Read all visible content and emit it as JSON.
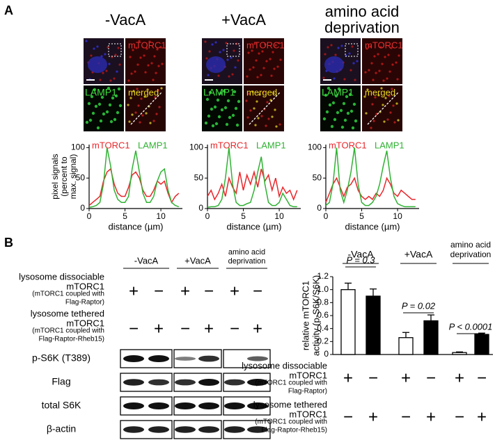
{
  "panel_a": {
    "label": "A",
    "conditions": [
      [
        "-VacA"
      ],
      [
        "+VacA"
      ],
      [
        "amino acid",
        "deprivation"
      ]
    ],
    "tile_labels": [
      "mTORC1",
      "LAMP1",
      "merged"
    ]
  },
  "chart_data": [
    {
      "type": "line",
      "x": [
        0,
        0.5,
        1,
        1.5,
        2,
        2.5,
        3,
        3.5,
        4,
        4.5,
        5,
        5.5,
        6,
        6.5,
        7,
        7.5,
        8,
        8.5,
        9,
        9.5,
        10,
        10.5,
        11,
        11.5,
        12,
        12.5
      ],
      "series": [
        {
          "name": "mTORC1",
          "color": "#e8262b",
          "values": [
            5,
            10,
            15,
            20,
            45,
            60,
            65,
            40,
            25,
            20,
            20,
            35,
            55,
            60,
            50,
            30,
            20,
            20,
            30,
            45,
            40,
            45,
            25,
            10,
            20,
            25
          ]
        },
        {
          "name": "LAMP1",
          "color": "#2fb232",
          "values": [
            2,
            3,
            5,
            10,
            40,
            100,
            70,
            30,
            15,
            10,
            10,
            20,
            65,
            95,
            60,
            25,
            10,
            10,
            20,
            45,
            60,
            65,
            30,
            10,
            5,
            3
          ]
        }
      ],
      "xlim": [
        0,
        13
      ],
      "ylim": [
        0,
        105
      ],
      "xticks": [
        0,
        5,
        10
      ],
      "yticks": [
        0,
        50,
        100
      ],
      "xlabel": "distance (µm)",
      "ylabel": [
        "pixel signals",
        "(percent to",
        "max. signal)"
      ]
    },
    {
      "type": "line",
      "x": [
        0,
        0.5,
        1,
        1.5,
        2,
        2.5,
        3,
        3.5,
        4,
        4.5,
        5,
        5.5,
        6,
        6.5,
        7,
        7.5,
        8,
        8.5,
        9,
        9.5,
        10,
        10.5,
        11,
        11.5,
        12,
        12.5
      ],
      "series": [
        {
          "name": "mTORC1",
          "color": "#e8262b",
          "values": [
            20,
            30,
            15,
            25,
            40,
            20,
            50,
            35,
            25,
            60,
            30,
            55,
            40,
            60,
            35,
            65,
            45,
            55,
            30,
            50,
            20,
            35,
            25,
            30,
            15,
            30
          ]
        },
        {
          "name": "LAMP1",
          "color": "#2fb232",
          "values": [
            2,
            3,
            3,
            5,
            15,
            50,
            100,
            40,
            10,
            5,
            5,
            8,
            10,
            30,
            60,
            85,
            40,
            10,
            5,
            5,
            10,
            25,
            15,
            5,
            3,
            3
          ]
        }
      ],
      "xlim": [
        0,
        13
      ],
      "ylim": [
        0,
        105
      ],
      "xticks": [
        0,
        5,
        10
      ],
      "yticks": [
        0,
        50,
        100
      ],
      "xlabel": "distance (µm)"
    },
    {
      "type": "line",
      "x": [
        0,
        0.5,
        1,
        1.5,
        2,
        2.5,
        3,
        3.5,
        4,
        4.5,
        5,
        5.5,
        6,
        6.5,
        7,
        7.5,
        8,
        8.5,
        9,
        9.5,
        10,
        10.5,
        11,
        11.5,
        12,
        12.5
      ],
      "series": [
        {
          "name": "mTORC1",
          "color": "#e8262b",
          "values": [
            10,
            25,
            40,
            50,
            35,
            20,
            35,
            40,
            50,
            30,
            20,
            15,
            20,
            15,
            25,
            20,
            30,
            50,
            40,
            25,
            20,
            30,
            25,
            20,
            15,
            15
          ]
        },
        {
          "name": "LAMP1",
          "color": "#2fb232",
          "values": [
            5,
            10,
            40,
            100,
            30,
            10,
            30,
            60,
            100,
            40,
            10,
            5,
            5,
            10,
            20,
            40,
            70,
            95,
            50,
            20,
            8,
            5,
            3,
            3,
            3,
            3
          ]
        }
      ],
      "xlim": [
        0,
        13
      ],
      "ylim": [
        0,
        105
      ],
      "xticks": [
        0,
        5,
        10
      ],
      "yticks": [
        0,
        50,
        100
      ],
      "xlabel": "distance (µm)"
    },
    {
      "type": "bar",
      "values": [
        1.0,
        0.9,
        0.26,
        0.52,
        0.03,
        0.31
      ],
      "errors": [
        0.1,
        0.11,
        0.08,
        0.09,
        0.01,
        0.02
      ],
      "colors": [
        "#ffffff",
        "#000000",
        "#ffffff",
        "#000000",
        "#ffffff",
        "#000000"
      ],
      "ylim": [
        0,
        1.2
      ],
      "yticks": [
        0,
        0.2,
        0.4,
        0.6,
        0.8,
        {
          "value": 1,
          "label": "1.0"
        },
        1.2
      ],
      "ylabel": [
        "relative mTORC1",
        "activity (p-S6K/S6K)"
      ],
      "groups": [
        [
          "-VacA"
        ],
        [
          "+VacA"
        ],
        [
          "amino acid",
          "deprivation"
        ]
      ],
      "annotations": [
        "P = 0.3",
        "P = 0.02",
        "P < 0.0001"
      ]
    }
  ],
  "panel_b": {
    "label": "B",
    "blot_conditions": [
      [
        "-VacA"
      ],
      [
        "+VacA"
      ],
      [
        "amino acid",
        "deprivation"
      ]
    ],
    "dissociable": [
      "lysosome dissociable",
      "mTORC1",
      "(mTORC1 coupled with",
      "Flag-Raptor)"
    ],
    "dissociable_signs": [
      "+",
      "−",
      "+",
      "−",
      "+",
      "−"
    ],
    "tethered": [
      "lysosome tethered",
      "mTORC1",
      "(mTORC1 coupled with",
      "Flag-Raptor-Rheb15)"
    ],
    "tethered_signs": [
      "−",
      "+",
      "−",
      "+",
      "−",
      "+"
    ],
    "blot_rows": [
      "p-S6K (T389)",
      "Flag",
      "total S6K",
      "β-actin"
    ],
    "bar_dissociable": [
      "lysosome dissociable",
      "mTORC1",
      "(mTORC1 coupled with",
      "Flag-Raptor)"
    ],
    "bar_dissociable_signs": [
      "+",
      "−",
      "+",
      "−",
      "+",
      "−"
    ],
    "bar_tethered": [
      "lysosome tethered",
      "mTORC1",
      "(mTORC1 coupled with",
      "Flag-Raptor-Rheb15)"
    ],
    "bar_tethered_signs": [
      "−",
      "+",
      "−",
      "+",
      "−",
      "+"
    ]
  }
}
